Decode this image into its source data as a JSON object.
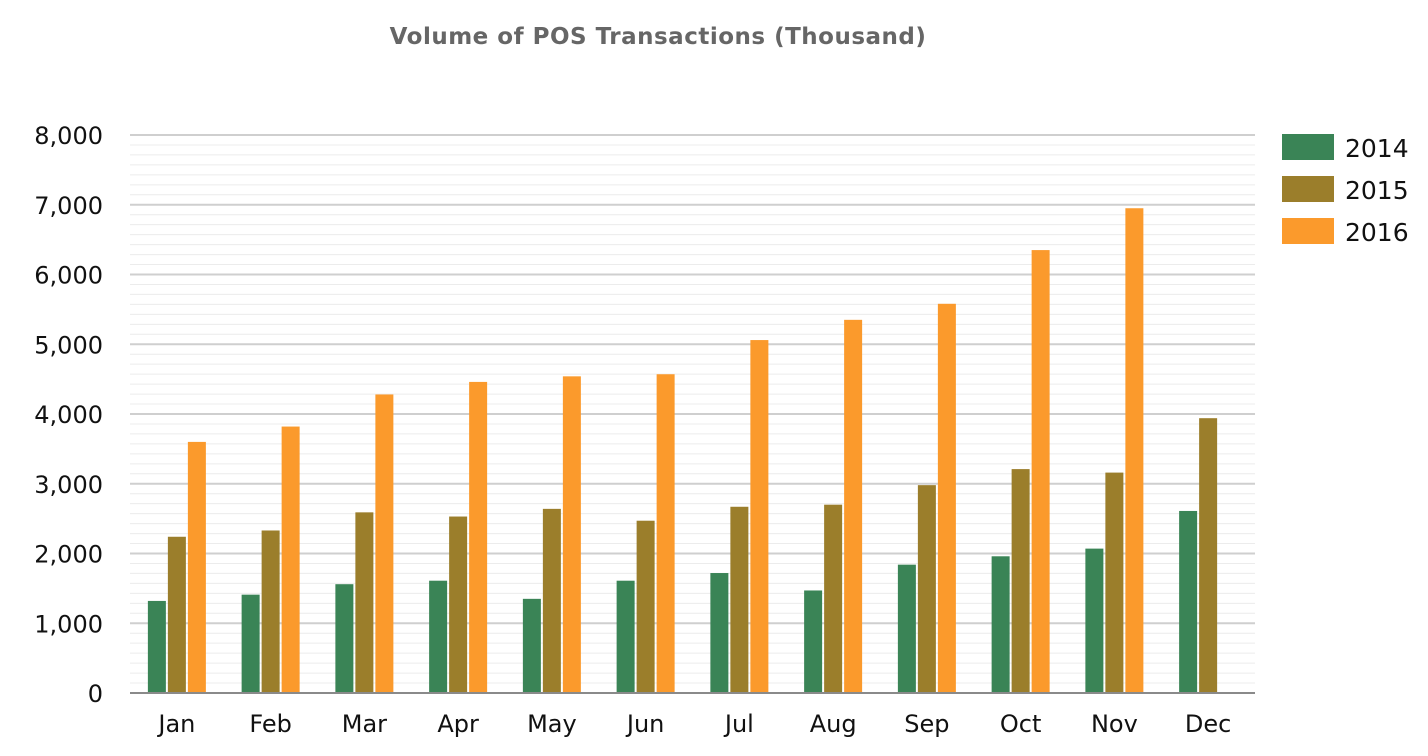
{
  "chart_data": {
    "type": "bar",
    "title": "Volume of POS Transactions (Thousand)",
    "xlabel": "",
    "ylabel": "",
    "categories": [
      "Jan",
      "Feb",
      "Mar",
      "Apr",
      "May",
      "Jun",
      "Jul",
      "Aug",
      "Sep",
      "Oct",
      "Nov",
      "Dec"
    ],
    "ylim": [
      0,
      8000
    ],
    "yticks": [
      0,
      1000,
      2000,
      3000,
      4000,
      5000,
      6000,
      7000,
      8000
    ],
    "ytick_labels": [
      "0",
      "1,000",
      "2,000",
      "3,000",
      "4,000",
      "5,000",
      "6,000",
      "7,000",
      "8,000"
    ],
    "grid": true,
    "legend_position": "top-right",
    "series": [
      {
        "name": "2014",
        "color": "#3a8456",
        "values": [
          1320,
          1410,
          1560,
          1610,
          1350,
          1610,
          1720,
          1470,
          1840,
          1960,
          2070,
          2610
        ]
      },
      {
        "name": "2015",
        "color": "#9b7e2b",
        "values": [
          2240,
          2330,
          2590,
          2530,
          2640,
          2470,
          2670,
          2700,
          2980,
          3210,
          3160,
          3940
        ]
      },
      {
        "name": "2016",
        "color": "#fb9a2c",
        "values": [
          3600,
          3820,
          4280,
          4460,
          4540,
          4570,
          5060,
          5350,
          5580,
          6350,
          6950,
          null
        ]
      }
    ]
  }
}
